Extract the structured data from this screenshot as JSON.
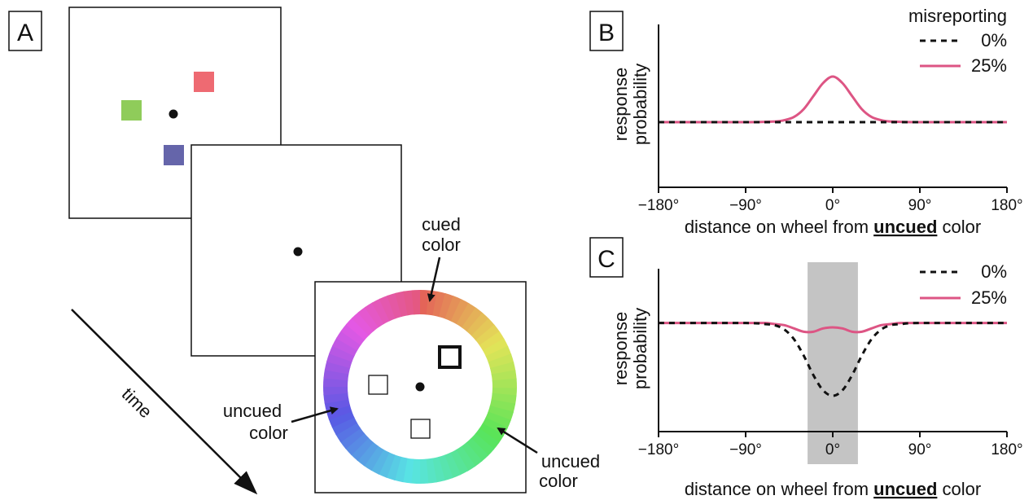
{
  "panel_labels": {
    "a": "A",
    "b": "B",
    "c": "C"
  },
  "stimulus": {
    "colors": {
      "green": "#8fcc5a",
      "red": "#ee6a72",
      "blue": "#6565aa"
    },
    "time_label": "time",
    "wheel_labels": {
      "cued_line1": "cued",
      "cued_line2": "color",
      "uncued_left_line1": "uncued",
      "uncued_left_line2": "color",
      "uncued_right_line1": "uncued",
      "uncued_right_line2": "color"
    }
  },
  "series_colors": {
    "s0": "#111111",
    "s25": "#dd5584"
  },
  "shade_color": "#c4c4c4",
  "chart_data": [
    {
      "type": "line",
      "panel": "B",
      "xlabel_pre": "distance on wheel from ",
      "xlabel_emph": "uncued",
      "xlabel_post": " color",
      "ylabel_line1": "response",
      "ylabel_line2": "probability",
      "xticks": [
        "−180°",
        "−90°",
        "0°",
        "90°",
        "180°"
      ],
      "xlim": [
        -180,
        180
      ],
      "ylim": [
        0,
        2.5
      ],
      "legend_title": "misreporting",
      "series": [
        {
          "name": "0%",
          "style": "dashed",
          "x": [
            -180,
            -90,
            -60,
            -40,
            -20,
            0,
            20,
            40,
            60,
            90,
            180
          ],
          "y": [
            1,
            1,
            1,
            1,
            1,
            1,
            1,
            1,
            1,
            1,
            1
          ]
        },
        {
          "name": "25%",
          "style": "solid",
          "x": [
            -180,
            -90,
            -60,
            -50,
            -40,
            -30,
            -20,
            -10,
            0,
            10,
            20,
            30,
            40,
            50,
            60,
            90,
            180
          ],
          "y": [
            1,
            1,
            1.01,
            1.03,
            1.08,
            1.2,
            1.4,
            1.6,
            1.7,
            1.6,
            1.4,
            1.2,
            1.08,
            1.03,
            1.01,
            1,
            1
          ]
        }
      ]
    },
    {
      "type": "line",
      "panel": "C",
      "xlabel_pre": "distance on wheel from ",
      "xlabel_emph": "uncued",
      "xlabel_post": " color",
      "ylabel_line1": "response",
      "ylabel_line2": "probability",
      "xticks": [
        "−180°",
        "−90°",
        "0°",
        "90°",
        "180°"
      ],
      "xlim": [
        -180,
        180
      ],
      "ylim": [
        0,
        1.5
      ],
      "shaded_region": [
        -26,
        26
      ],
      "series": [
        {
          "name": "0%",
          "style": "dashed",
          "x": [
            -180,
            -90,
            -70,
            -60,
            -50,
            -40,
            -30,
            -20,
            -10,
            0,
            10,
            20,
            30,
            40,
            50,
            60,
            70,
            90,
            180
          ],
          "y": [
            1,
            1,
            0.99,
            0.98,
            0.94,
            0.85,
            0.7,
            0.52,
            0.38,
            0.33,
            0.38,
            0.52,
            0.7,
            0.85,
            0.94,
            0.98,
            0.99,
            1,
            1
          ]
        },
        {
          "name": "25%",
          "style": "solid",
          "x": [
            -180,
            -90,
            -70,
            -60,
            -50,
            -40,
            -30,
            -20,
            -10,
            0,
            10,
            20,
            30,
            40,
            50,
            60,
            70,
            90,
            180
          ],
          "y": [
            1,
            1,
            1,
            0.99,
            0.98,
            0.95,
            0.92,
            0.92,
            0.95,
            0.96,
            0.95,
            0.92,
            0.92,
            0.95,
            0.98,
            0.99,
            1,
            1,
            1
          ]
        }
      ]
    }
  ]
}
